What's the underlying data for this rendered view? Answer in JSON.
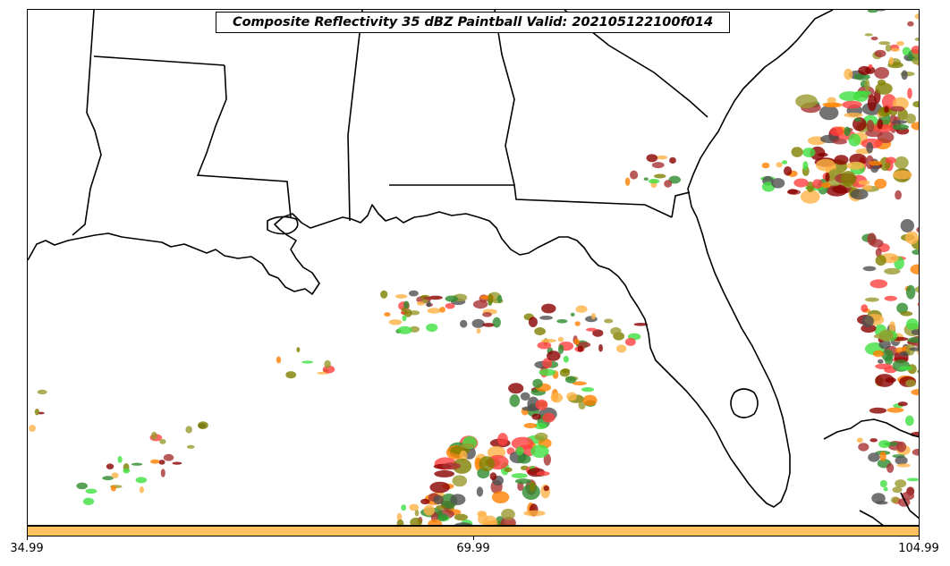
{
  "title": "Composite Reflectivity 35 dBZ Paintball Valid: 202105122100f014",
  "colorbar": {
    "color": "#ffc060",
    "ticks": [
      "34.99",
      "69.99",
      "104.99"
    ]
  },
  "member_colors": [
    "#ff4040",
    "#ff7f00",
    "#ffb347",
    "#a83232",
    "#8b0000",
    "#9a9a30",
    "#40e040",
    "#2e8b2e",
    "#505050",
    "#808000"
  ],
  "map": {
    "region": "Gulf of Mexico / Southeast US",
    "borders_color": "#000000"
  }
}
